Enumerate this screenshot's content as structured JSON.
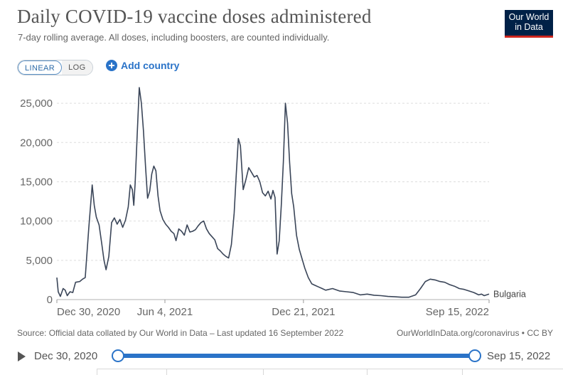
{
  "header": {
    "title": "Daily COVID-19 vaccine doses administered",
    "subtitle": "7-day rolling average. All doses, including boosters, are counted individually.",
    "logo_line1": "Our World",
    "logo_line2": "in Data"
  },
  "controls": {
    "linear_label": "LINEAR",
    "log_label": "LOG",
    "add_country_label": "Add country"
  },
  "chart_data": {
    "type": "line",
    "title": "Daily COVID-19 vaccine doses administered",
    "subtitle": "7-day rolling average. All doses, including boosters, are counted individually.",
    "ylim": [
      0,
      27000
    ],
    "xlim": [
      "2020-12-30",
      "2022-09-15"
    ],
    "y_ticks": [
      0,
      5000,
      10000,
      15000,
      20000,
      25000
    ],
    "y_tick_labels": [
      "0",
      "5,000",
      "10,000",
      "15,000",
      "20,000",
      "25,000"
    ],
    "x_ticks": [
      "2020-12-30",
      "2021-06-04",
      "2021-12-21",
      "2022-09-15"
    ],
    "x_tick_labels": [
      "Dec 30, 2020",
      "Jun 4, 2021",
      "Dec 21, 2021",
      "Sep 15, 2022"
    ],
    "grid": "horizontal",
    "line_color": "#3a4558",
    "series": [
      {
        "name": "Bulgaria",
        "points": [
          [
            "2020-12-30",
            2800
          ],
          [
            "2021-01-01",
            1000
          ],
          [
            "2021-01-04",
            400
          ],
          [
            "2021-01-08",
            1400
          ],
          [
            "2021-01-11",
            1200
          ],
          [
            "2021-01-14",
            500
          ],
          [
            "2021-01-18",
            1000
          ],
          [
            "2021-01-22",
            900
          ],
          [
            "2021-01-26",
            2200
          ],
          [
            "2021-02-01",
            2300
          ],
          [
            "2021-02-05",
            2600
          ],
          [
            "2021-02-09",
            2800
          ],
          [
            "2021-02-14",
            9000
          ],
          [
            "2021-02-19",
            14600
          ],
          [
            "2021-02-22",
            12000
          ],
          [
            "2021-02-25",
            10500
          ],
          [
            "2021-03-01",
            9500
          ],
          [
            "2021-03-05",
            7000
          ],
          [
            "2021-03-08",
            5000
          ],
          [
            "2021-03-11",
            3800
          ],
          [
            "2021-03-15",
            5500
          ],
          [
            "2021-03-19",
            9800
          ],
          [
            "2021-03-23",
            10400
          ],
          [
            "2021-03-27",
            9600
          ],
          [
            "2021-03-31",
            10200
          ],
          [
            "2021-04-04",
            9200
          ],
          [
            "2021-04-08",
            10100
          ],
          [
            "2021-04-12",
            11800
          ],
          [
            "2021-04-15",
            14600
          ],
          [
            "2021-04-18",
            14000
          ],
          [
            "2021-04-20",
            12000
          ],
          [
            "2021-04-22",
            14800
          ],
          [
            "2021-04-25",
            21000
          ],
          [
            "2021-04-28",
            27000
          ],
          [
            "2021-05-01",
            25000
          ],
          [
            "2021-05-04",
            21500
          ],
          [
            "2021-05-07",
            17000
          ],
          [
            "2021-05-10",
            12900
          ],
          [
            "2021-05-13",
            13800
          ],
          [
            "2021-05-16",
            16000
          ],
          [
            "2021-05-19",
            17000
          ],
          [
            "2021-05-22",
            16400
          ],
          [
            "2021-05-25",
            13200
          ],
          [
            "2021-05-28",
            11300
          ],
          [
            "2021-06-01",
            10200
          ],
          [
            "2021-06-05",
            9600
          ],
          [
            "2021-06-09",
            9200
          ],
          [
            "2021-06-13",
            8700
          ],
          [
            "2021-06-17",
            8400
          ],
          [
            "2021-06-20",
            7500
          ],
          [
            "2021-06-24",
            9000
          ],
          [
            "2021-06-28",
            8700
          ],
          [
            "2021-07-02",
            8200
          ],
          [
            "2021-07-06",
            9500
          ],
          [
            "2021-07-10",
            8600
          ],
          [
            "2021-07-14",
            8700
          ],
          [
            "2021-07-18",
            8900
          ],
          [
            "2021-07-22",
            9400
          ],
          [
            "2021-07-26",
            9800
          ],
          [
            "2021-07-30",
            10000
          ],
          [
            "2021-08-03",
            9000
          ],
          [
            "2021-08-07",
            8400
          ],
          [
            "2021-08-11",
            8000
          ],
          [
            "2021-08-15",
            7600
          ],
          [
            "2021-08-19",
            6500
          ],
          [
            "2021-08-23",
            6200
          ],
          [
            "2021-08-27",
            5800
          ],
          [
            "2021-08-31",
            5500
          ],
          [
            "2021-09-04",
            5300
          ],
          [
            "2021-09-08",
            7000
          ],
          [
            "2021-09-12",
            11000
          ],
          [
            "2021-09-15",
            16000
          ],
          [
            "2021-09-18",
            20500
          ],
          [
            "2021-09-21",
            19600
          ],
          [
            "2021-09-25",
            14000
          ],
          [
            "2021-09-29",
            15300
          ],
          [
            "2021-10-03",
            16800
          ],
          [
            "2021-10-07",
            16200
          ],
          [
            "2021-10-11",
            15600
          ],
          [
            "2021-10-15",
            15800
          ],
          [
            "2021-10-19",
            15000
          ],
          [
            "2021-10-23",
            13600
          ],
          [
            "2021-10-27",
            13200
          ],
          [
            "2021-10-31",
            13800
          ],
          [
            "2021-11-04",
            12800
          ],
          [
            "2021-11-07",
            13900
          ],
          [
            "2021-11-10",
            13000
          ],
          [
            "2021-11-13",
            5800
          ],
          [
            "2021-11-16",
            7500
          ],
          [
            "2021-11-19",
            12000
          ],
          [
            "2021-11-22",
            17500
          ],
          [
            "2021-11-25",
            25000
          ],
          [
            "2021-11-28",
            22500
          ],
          [
            "2021-12-01",
            17500
          ],
          [
            "2021-12-04",
            13500
          ],
          [
            "2021-12-07",
            11800
          ],
          [
            "2021-12-11",
            8200
          ],
          [
            "2021-12-15",
            6400
          ],
          [
            "2021-12-19",
            5200
          ],
          [
            "2021-12-23",
            4000
          ],
          [
            "2021-12-28",
            2800
          ],
          [
            "2022-01-02",
            2000
          ],
          [
            "2022-01-07",
            1800
          ],
          [
            "2022-01-12",
            1600
          ],
          [
            "2022-01-17",
            1400
          ],
          [
            "2022-01-22",
            1200
          ],
          [
            "2022-02-01",
            1400
          ],
          [
            "2022-02-11",
            1100
          ],
          [
            "2022-02-21",
            1000
          ],
          [
            "2022-03-03",
            900
          ],
          [
            "2022-03-13",
            600
          ],
          [
            "2022-03-23",
            700
          ],
          [
            "2022-04-02",
            550
          ],
          [
            "2022-04-12",
            500
          ],
          [
            "2022-04-22",
            400
          ],
          [
            "2022-05-02",
            350
          ],
          [
            "2022-05-12",
            300
          ],
          [
            "2022-05-22",
            300
          ],
          [
            "2022-06-01",
            600
          ],
          [
            "2022-06-08",
            1400
          ],
          [
            "2022-06-15",
            2300
          ],
          [
            "2022-06-22",
            2600
          ],
          [
            "2022-06-29",
            2500
          ],
          [
            "2022-07-06",
            2300
          ],
          [
            "2022-07-13",
            2200
          ],
          [
            "2022-07-20",
            1900
          ],
          [
            "2022-07-27",
            1700
          ],
          [
            "2022-08-03",
            1400
          ],
          [
            "2022-08-10",
            1300
          ],
          [
            "2022-08-17",
            1100
          ],
          [
            "2022-08-24",
            900
          ],
          [
            "2022-08-31",
            600
          ],
          [
            "2022-09-04",
            700
          ],
          [
            "2022-09-08",
            500
          ],
          [
            "2022-09-15",
            700
          ]
        ]
      }
    ]
  },
  "footer": {
    "source": "Source: Official data collated by Our World in Data – Last updated 16 September 2022",
    "credit": "OurWorldInData.org/coronavirus • CC BY"
  },
  "timeline": {
    "start_label": "Dec 30, 2020",
    "end_label": "Sep 15, 2022"
  }
}
